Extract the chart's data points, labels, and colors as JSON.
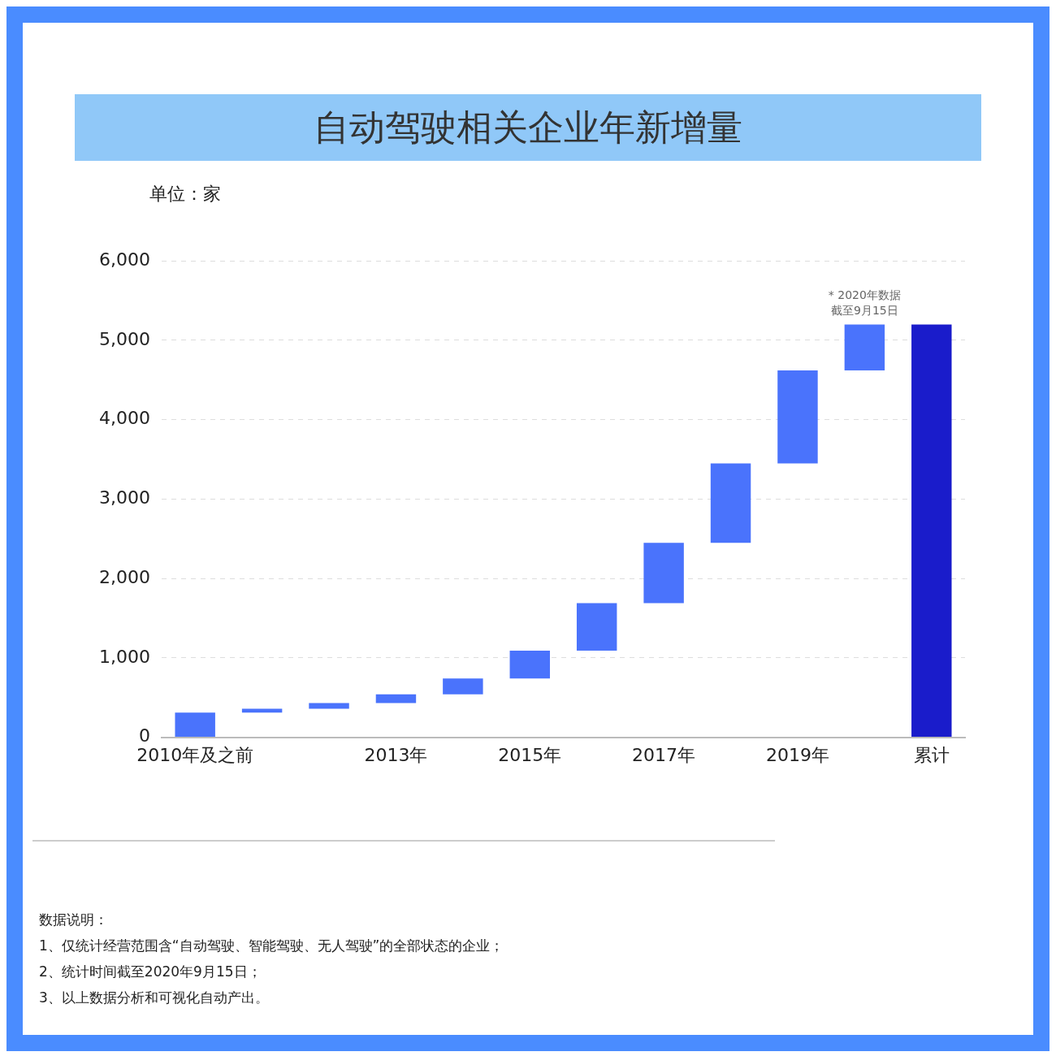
{
  "chart_data": {
    "type": "bar",
    "title": "自动驾驶相关企业年新增量",
    "ylabel": "单位：家",
    "categories": [
      "2010年及之前",
      null,
      null,
      "2013年",
      null,
      "2015年",
      null,
      "2017年",
      null,
      "2019年",
      null,
      "累计"
    ],
    "values": [
      310,
      50,
      70,
      110,
      200,
      350,
      600,
      760,
      1000,
      1170,
      580,
      5200
    ],
    "base": [
      0,
      310,
      360,
      430,
      540,
      740,
      1090,
      1690,
      2450,
      3450,
      4620,
      0
    ],
    "colors": [
      "#4a73fc",
      "#4a73fc",
      "#4a73fc",
      "#4a73fc",
      "#4a73fc",
      "#4a73fc",
      "#4a73fc",
      "#4a73fc",
      "#4a73fc",
      "#4a73fc",
      "#4a73fc",
      "#1a1ccb"
    ],
    "ylim": [
      0,
      6000
    ],
    "yticks": [
      0,
      {
        "value": 1000,
        "label": "1,000"
      },
      {
        "value": 2000,
        "label": "2,000"
      },
      {
        "value": 3000,
        "label": "3,000"
      },
      {
        "value": 4000,
        "label": "4,000"
      },
      {
        "value": 5000,
        "label": "5,000"
      },
      {
        "value": 6000,
        "label": "6,000"
      }
    ],
    "grid": "y",
    "annotations": [
      "* 2020年数据",
      "截至9月15日",
      "数据说明：",
      "1、仅统计经营范围含“自动驾驶、智能驾驶、无人驾驶”的全部状态的企业；",
      "2、统计时间截至2020年9月15日；",
      "3、以上数据分析和可视化自动产出。"
    ]
  }
}
